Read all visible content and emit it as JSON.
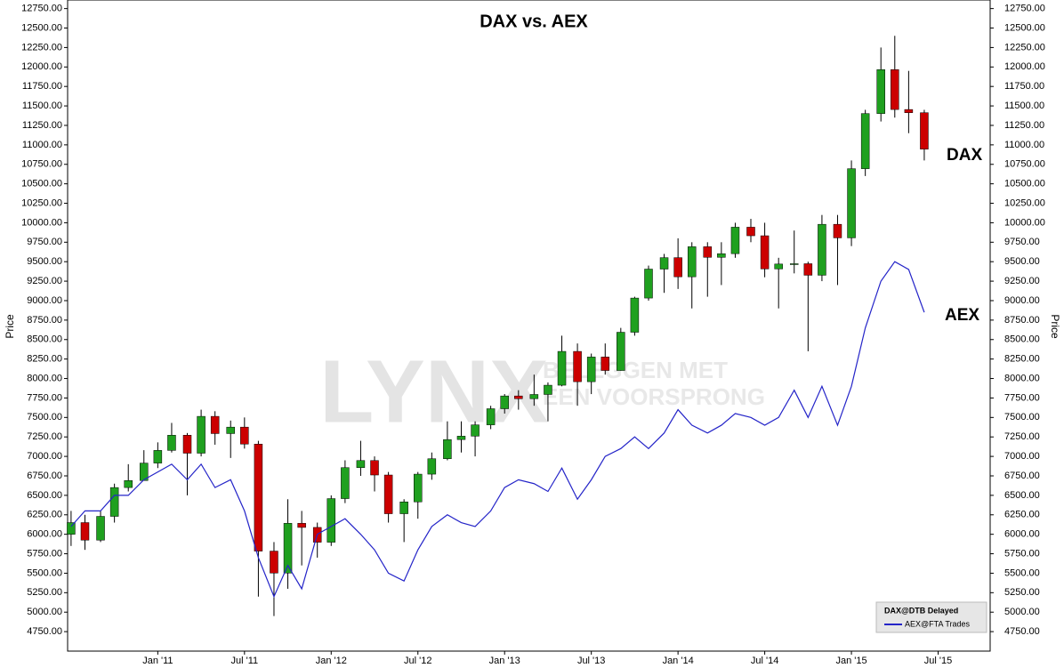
{
  "chart_data": {
    "type": "candlestick",
    "title": "DAX vs. AEX",
    "y_label": "Price",
    "y2_label": "Price",
    "annotations": [
      "DAX",
      "AEX"
    ],
    "watermark": [
      "LYNX",
      "BELEGGEN MET",
      "EEN VOORSPRONG"
    ],
    "legend_position": "lower right",
    "xlim": [
      2010.48,
      2015.8
    ],
    "xticks": [
      {
        "value": 2011,
        "label": "Jan '11"
      },
      {
        "value": 2011.5,
        "label": "Jul '11"
      },
      {
        "value": 2012,
        "label": "Jan '12"
      },
      {
        "value": 2012.5,
        "label": "Jul '12"
      },
      {
        "value": 2013,
        "label": "Jan '13"
      },
      {
        "value": 2013.5,
        "label": "Jul '13"
      },
      {
        "value": 2014,
        "label": "Jan '14"
      },
      {
        "value": 2014.5,
        "label": "Jul '14"
      },
      {
        "value": 2015,
        "label": "Jan '15"
      },
      {
        "value": 2015.5,
        "label": "Jul '15"
      }
    ],
    "ylim": [
      4500,
      12860
    ],
    "yticks": [
      {
        "value": 4750,
        "label": "4750.00"
      },
      {
        "value": 5000,
        "label": "5000.00"
      },
      {
        "value": 5250,
        "label": "5250.00"
      },
      {
        "value": 5500,
        "label": "5500.00"
      },
      {
        "value": 5750,
        "label": "5750.00"
      },
      {
        "value": 6000,
        "label": "6000.00"
      },
      {
        "value": 6250,
        "label": "6250.00"
      },
      {
        "value": 6500,
        "label": "6500.00"
      },
      {
        "value": 6750,
        "label": "6750.00"
      },
      {
        "value": 7000,
        "label": "7000.00"
      },
      {
        "value": 7250,
        "label": "7250.00"
      },
      {
        "value": 7500,
        "label": "7500.00"
      },
      {
        "value": 7750,
        "label": "7750.00"
      },
      {
        "value": 8000,
        "label": "8000.00"
      },
      {
        "value": 8250,
        "label": "8250.00"
      },
      {
        "value": 8500,
        "label": "8500.00"
      },
      {
        "value": 8750,
        "label": "8750.00"
      },
      {
        "value": 9000,
        "label": "9000.00"
      },
      {
        "value": 9250,
        "label": "9250.00"
      },
      {
        "value": 9500,
        "label": "9500.00"
      },
      {
        "value": 9750,
        "label": "9750.00"
      },
      {
        "value": 10000,
        "label": "10000.00"
      },
      {
        "value": 10250,
        "label": "10250.00"
      },
      {
        "value": 10500,
        "label": "10500.00"
      },
      {
        "value": 10750,
        "label": "10750.00"
      },
      {
        "value": 11000,
        "label": "11000.00"
      },
      {
        "value": 11250,
        "label": "11250.00"
      },
      {
        "value": 11500,
        "label": "11500.00"
      },
      {
        "value": 11750,
        "label": "11750.00"
      },
      {
        "value": 12000,
        "label": "12000.00"
      },
      {
        "value": 12250,
        "label": "12250.00"
      },
      {
        "value": 12500,
        "label": "12500.00"
      },
      {
        "value": 12750,
        "label": "12750.00"
      }
    ],
    "x": [
      2010.5,
      2010.58,
      2010.67,
      2010.75,
      2010.83,
      2010.92,
      2011.0,
      2011.08,
      2011.17,
      2011.25,
      2011.33,
      2011.42,
      2011.5,
      2011.58,
      2011.67,
      2011.75,
      2011.83,
      2011.92,
      2012.0,
      2012.08,
      2012.17,
      2012.25,
      2012.33,
      2012.42,
      2012.5,
      2012.58,
      2012.67,
      2012.75,
      2012.83,
      2012.92,
      2013.0,
      2013.08,
      2013.17,
      2013.25,
      2013.33,
      2013.42,
      2013.5,
      2013.58,
      2013.67,
      2013.75,
      2013.83,
      2013.92,
      2014.0,
      2014.08,
      2014.17,
      2014.25,
      2014.33,
      2014.42,
      2014.5,
      2014.58,
      2014.67,
      2014.75,
      2014.83,
      2014.92,
      2015.0,
      2015.08,
      2015.17,
      2015.25,
      2015.33,
      2015.42
    ],
    "series": [
      {
        "name": "DAX@DTB Delayed",
        "up_color": "#1fa01f",
        "down_color": "#cc0000",
        "wick_color": "#000000",
        "open": [
          6000,
          6150,
          5925,
          6230,
          6600,
          6690,
          6914,
          7077,
          7272,
          7041,
          7514,
          7293,
          7376,
          7158,
          5784,
          5502,
          6141,
          6088,
          5898,
          6458,
          6856,
          6947,
          6761,
          6264,
          6416,
          6772,
          6970,
          7216,
          7260,
          7405,
          7612,
          7776,
          7741,
          7795,
          7914,
          8348,
          7959,
          8276,
          8103,
          8594,
          9033,
          9405,
          9552,
          9306,
          9692,
          9556,
          9603,
          9943,
          9833,
          9407,
          9470,
          9474,
          9326,
          9980,
          9806,
          10694,
          11402,
          11966,
          11454,
          11413
        ],
        "high": [
          6300,
          6250,
          6300,
          6650,
          6900,
          7080,
          7180,
          7430,
          7300,
          7600,
          7580,
          7460,
          7500,
          7200,
          5900,
          6450,
          6300,
          6150,
          6500,
          6950,
          7200,
          7000,
          6800,
          6450,
          6800,
          7050,
          7450,
          7450,
          7450,
          7650,
          7800,
          7850,
          8050,
          7950,
          8550,
          8450,
          8320,
          8450,
          8650,
          9050,
          9450,
          9600,
          9800,
          9750,
          9750,
          9750,
          10000,
          10050,
          10000,
          9550,
          9900,
          9500,
          10100,
          10100,
          10800,
          11450,
          12250,
          12400,
          11950,
          11450
        ],
        "low": [
          5850,
          5800,
          5900,
          6150,
          6550,
          6700,
          6850,
          7050,
          6500,
          7000,
          7150,
          6980,
          7100,
          5200,
          4950,
          5300,
          5600,
          5700,
          5850,
          6400,
          6750,
          6550,
          6150,
          5900,
          6200,
          6700,
          6950,
          7050,
          7000,
          7350,
          7550,
          7600,
          7650,
          7450,
          7900,
          7650,
          7800,
          8050,
          8100,
          8550,
          9000,
          9100,
          9150,
          8900,
          9050,
          9200,
          9550,
          9750,
          9300,
          8900,
          9350,
          8350,
          9250,
          9200,
          9700,
          10600,
          11300,
          11350,
          11150,
          10800
        ],
        "close": [
          6150,
          5925,
          6230,
          6600,
          6690,
          6914,
          7077,
          7272,
          7041,
          7514,
          7293,
          7376,
          7158,
          5784,
          5502,
          6141,
          6088,
          5898,
          6458,
          6856,
          6947,
          6761,
          6264,
          6416,
          6772,
          6970,
          7216,
          7260,
          7405,
          7612,
          7776,
          7741,
          7795,
          7914,
          8348,
          7959,
          8276,
          8103,
          8594,
          9033,
          9405,
          9552,
          9306,
          9692,
          9556,
          9603,
          9943,
          9833,
          9407,
          9470,
          9474,
          9326,
          9980,
          9806,
          10694,
          11402,
          11966,
          11454,
          11413,
          10945
        ]
      },
      {
        "name": "AEX@FTA Trades",
        "type": "line",
        "color": "#2424c8",
        "values": [
          6100,
          6300,
          6300,
          6500,
          6500,
          6700,
          6800,
          6900,
          6700,
          6900,
          6600,
          6700,
          6300,
          5700,
          5200,
          5600,
          5300,
          6000,
          6100,
          6200,
          6000,
          5800,
          5500,
          5400,
          5800,
          6100,
          6250,
          6150,
          6100,
          6300,
          6600,
          6700,
          6650,
          6550,
          6850,
          6450,
          6700,
          7000,
          7100,
          7250,
          7100,
          7300,
          7600,
          7400,
          7300,
          7400,
          7550,
          7500,
          7400,
          7500,
          7850,
          7500,
          7900,
          7400,
          7900,
          8650,
          9250,
          9500,
          9400,
          8850
        ]
      }
    ]
  }
}
